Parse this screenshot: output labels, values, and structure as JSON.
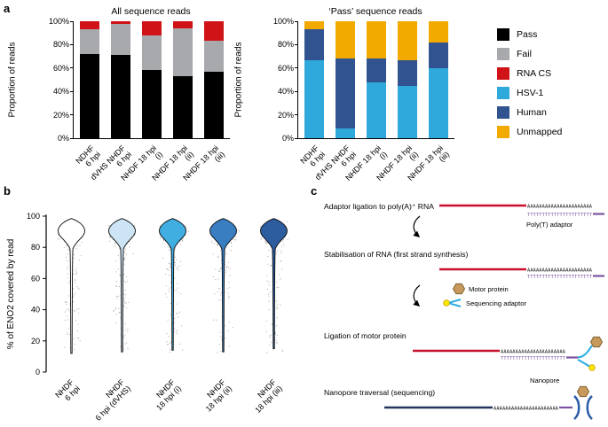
{
  "panels": {
    "a": "a",
    "b": "b",
    "c": "c"
  },
  "colors": {
    "pass": "#000000",
    "fail": "#a7a9ac",
    "rna_cs": "#d01317",
    "hsv1": "#2fa8dc",
    "human": "#31538f",
    "unmapped": "#f2a900",
    "step_title_green": "#00a651"
  },
  "legend": {
    "items": [
      {
        "label": "Pass",
        "color_key": "pass"
      },
      {
        "label": "Fail",
        "color_key": "fail"
      },
      {
        "label": "RNA CS",
        "color_key": "rna_cs"
      },
      {
        "label": "HSV-1",
        "color_key": "hsv1"
      },
      {
        "label": "Human",
        "color_key": "human"
      },
      {
        "label": "Unmapped",
        "color_key": "unmapped"
      }
    ]
  },
  "chart_data": [
    {
      "type": "bar",
      "stacked": true,
      "title": "All sequence reads",
      "ylabel": "Proportion of reads",
      "ylim": [
        0,
        100
      ],
      "yticks": [
        "0%",
        "20%",
        "40%",
        "60%",
        "80%",
        "100%"
      ],
      "categories": [
        [
          "NDHF",
          "6 hpi"
        ],
        [
          "dVHS NHDF",
          "6 hpi"
        ],
        [
          "NHDF 18 hpi",
          "(i)"
        ],
        [
          "NHDF 18 hpi",
          "(ii)"
        ],
        [
          "NHDF 18 hpi",
          "(iii)"
        ]
      ],
      "series": [
        {
          "name": "Pass",
          "color_key": "pass",
          "values": [
            72,
            71,
            58,
            53,
            57
          ]
        },
        {
          "name": "Fail",
          "color_key": "fail",
          "values": [
            21,
            27,
            30,
            41,
            26
          ]
        },
        {
          "name": "RNA CS",
          "color_key": "rna_cs",
          "values": [
            7,
            2,
            12,
            6,
            17
          ]
        }
      ]
    },
    {
      "type": "bar",
      "stacked": true,
      "title": "‘Pass’ sequence reads",
      "ylabel": "Proportion of reads",
      "ylim": [
        0,
        100
      ],
      "yticks": [
        "0%",
        "20%",
        "40%",
        "60%",
        "80%",
        "100%"
      ],
      "categories": [
        [
          "NDHF",
          "6 hpi"
        ],
        [
          "dVHS NHDF",
          "6 hpi"
        ],
        [
          "NHDF 18 hpi",
          "(i)"
        ],
        [
          "NHDF 18 hpi",
          "(ii)"
        ],
        [
          "NHDF 18 hpi",
          "(iii)"
        ]
      ],
      "series": [
        {
          "name": "HSV-1",
          "color_key": "hsv1",
          "values": [
            67,
            8,
            48,
            45,
            60
          ]
        },
        {
          "name": "Human",
          "color_key": "human",
          "values": [
            26,
            60,
            20,
            22,
            22
          ]
        },
        {
          "name": "Unmapped",
          "color_key": "unmapped",
          "values": [
            7,
            32,
            32,
            33,
            18
          ]
        }
      ]
    },
    {
      "type": "violin",
      "title": "",
      "ylabel": "% of ENO2 covered by read",
      "ylim": [
        0,
        100
      ],
      "yticks": [
        "0",
        "20",
        "40",
        "60",
        "80",
        "100"
      ],
      "categories": [
        [
          "NHDF",
          "6 hpi"
        ],
        [
          "NHDF",
          "6 hpi (dVHS)"
        ],
        [
          "NHDF",
          "18 hpi (i)"
        ],
        [
          "NHDF",
          "18 hpi (ii)"
        ],
        [
          "NHDF",
          "18 hpi (iii)"
        ]
      ],
      "series": [
        {
          "name": "NHDF 6 hpi",
          "fill": "#ffffff",
          "median": 90,
          "bulk_range": [
            82,
            99
          ],
          "tail_min": 12
        },
        {
          "name": "NHDF 6 hpi (dVHS)",
          "fill": "#cde4f5",
          "median": 90,
          "bulk_range": [
            82,
            99
          ],
          "tail_min": 13
        },
        {
          "name": "NHDF 18 hpi (i)",
          "fill": "#41aee2",
          "median": 89,
          "bulk_range": [
            81,
            98
          ],
          "tail_min": 14
        },
        {
          "name": "NHDF 18 hpi (ii)",
          "fill": "#3a7ec2",
          "median": 89,
          "bulk_range": [
            81,
            98
          ],
          "tail_min": 13
        },
        {
          "name": "NHDF 18 hpi (iii)",
          "fill": "#2d5d9f",
          "median": 89,
          "bulk_range": [
            81,
            98
          ],
          "tail_min": 15
        }
      ]
    }
  ],
  "diagram": {
    "steps": [
      {
        "title": "Adaptor ligation to poly(A)⁺ RNA"
      },
      {
        "title": "Stabilisation of RNA (first strand synthesis)"
      },
      {
        "title": "Ligation of motor protein"
      },
      {
        "title": "Nanopore traversal (sequencing)"
      }
    ],
    "labels": {
      "poly_t_adaptor": "Poly(T) adaptor",
      "motor_protein": "Motor protein",
      "sequencing_adaptor": "Sequencing adaptor",
      "nanopore": "Nanopore"
    },
    "poly_a": "AAAAAAAAAAAAAAAAAAAAAA",
    "poly_t": "TTTTTTTTTTTTTTTTTTTTTT"
  }
}
